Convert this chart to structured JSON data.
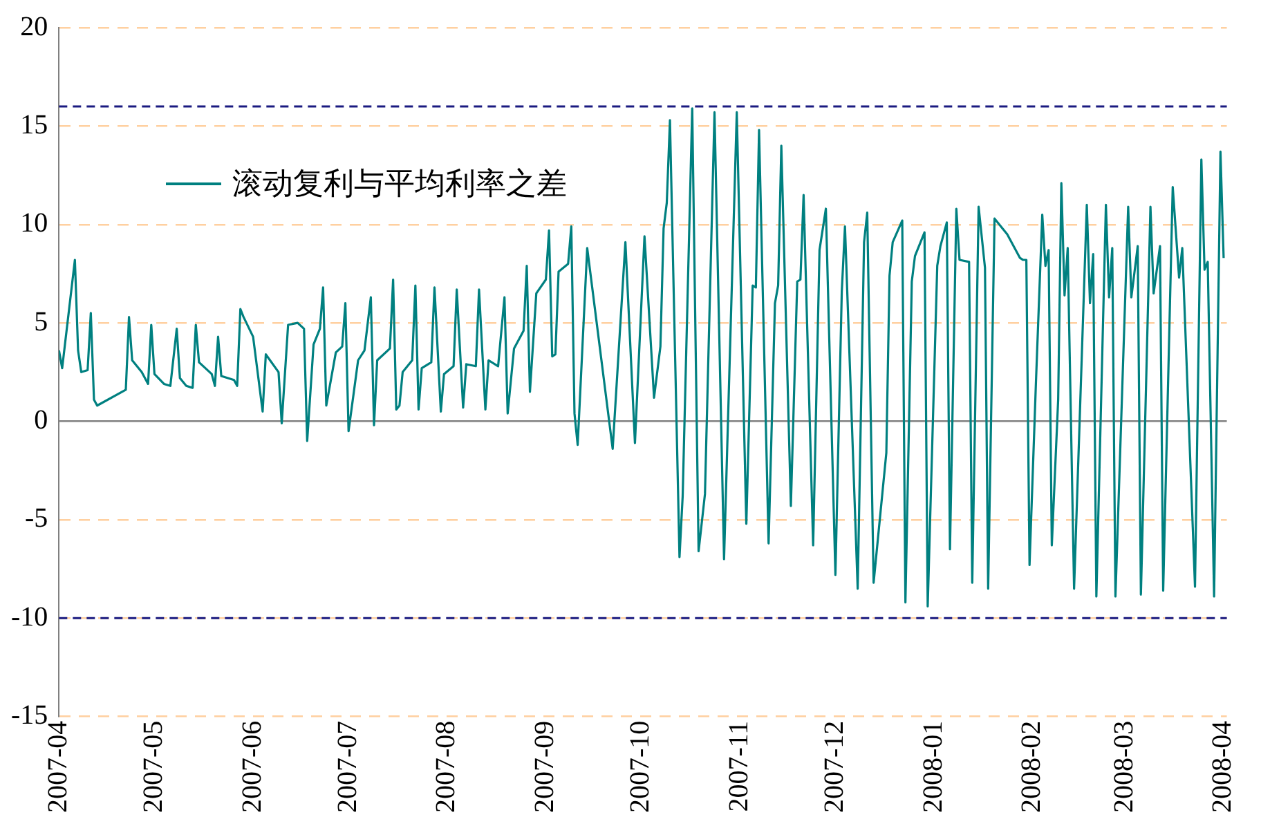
{
  "chart_data": {
    "type": "line",
    "legend": "top left",
    "grid": "y",
    "marker": "none",
    "line_style": "solid",
    "xlim": [
      "2007-04-01",
      "2008-04-02"
    ],
    "ylim": [
      -15,
      20
    ],
    "yticks": [
      -15,
      -10,
      -5,
      0,
      5,
      10,
      15,
      20
    ],
    "xticks": [
      "2007-04",
      "2007-05",
      "2007-06",
      "2007-07",
      "2007-08",
      "2007-09",
      "2007-10",
      "2007-11",
      "2007-12",
      "2008-01",
      "2008-02",
      "2008-03",
      "2008-04"
    ],
    "ref_lines": [
      {
        "axis": "y",
        "value": 16,
        "label": null,
        "color": "#1a1a80",
        "line_style": "dashed"
      },
      {
        "axis": "y",
        "value": -10,
        "label": null,
        "color": "#1a1a80",
        "line_style": "dashed"
      }
    ],
    "series": [
      {
        "name": "滚动复利与平均利率之差",
        "color": "#008080",
        "x": [
          "2007-04-01",
          "2007-04-02",
          "2007-04-06",
          "2007-04-07",
          "2007-04-08",
          "2007-04-10",
          "2007-04-11",
          "2007-04-12",
          "2007-04-13",
          "2007-04-22",
          "2007-04-23",
          "2007-04-24",
          "2007-04-27",
          "2007-04-29",
          "2007-04-30",
          "2007-05-01",
          "2007-05-04",
          "2007-05-06",
          "2007-05-08",
          "2007-05-09",
          "2007-05-11",
          "2007-05-13",
          "2007-05-14",
          "2007-05-15",
          "2007-05-19",
          "2007-05-20",
          "2007-05-21",
          "2007-05-22",
          "2007-05-26",
          "2007-05-27",
          "2007-05-28",
          "2007-05-29",
          "2007-06-01",
          "2007-06-04",
          "2007-06-05",
          "2007-06-09",
          "2007-06-10",
          "2007-06-12",
          "2007-06-15",
          "2007-06-17",
          "2007-06-18",
          "2007-06-20",
          "2007-06-22",
          "2007-06-23",
          "2007-06-24",
          "2007-06-27",
          "2007-06-29",
          "2007-06-30",
          "2007-07-01",
          "2007-07-04",
          "2007-07-06",
          "2007-07-08",
          "2007-07-09",
          "2007-07-10",
          "2007-07-14",
          "2007-07-15",
          "2007-07-16",
          "2007-07-17",
          "2007-07-18",
          "2007-07-21",
          "2007-07-22",
          "2007-07-23",
          "2007-07-24",
          "2007-07-27",
          "2007-07-28",
          "2007-07-30",
          "2007-07-31",
          "2007-08-03",
          "2007-08-04",
          "2007-08-06",
          "2007-08-07",
          "2007-08-10",
          "2007-08-11",
          "2007-08-13",
          "2007-08-14",
          "2007-08-17",
          "2007-08-19",
          "2007-08-20",
          "2007-08-22",
          "2007-08-25",
          "2007-08-26",
          "2007-08-27",
          "2007-08-29",
          "2007-09-01",
          "2007-09-02",
          "2007-09-03",
          "2007-09-04",
          "2007-09-05",
          "2007-09-08",
          "2007-09-09",
          "2007-09-10",
          "2007-09-11",
          "2007-09-14",
          "2007-09-22",
          "2007-09-26",
          "2007-09-29",
          "2007-10-02",
          "2007-10-05",
          "2007-10-07",
          "2007-10-08",
          "2007-10-09",
          "2007-10-10",
          "2007-10-13",
          "2007-10-14",
          "2007-10-17",
          "2007-10-19",
          "2007-10-21",
          "2007-10-24",
          "2007-10-27",
          "2007-10-31",
          "2007-11-03",
          "2007-11-05",
          "2007-11-06",
          "2007-11-07",
          "2007-11-10",
          "2007-11-12",
          "2007-11-13",
          "2007-11-14",
          "2007-11-17",
          "2007-11-19",
          "2007-11-20",
          "2007-11-21",
          "2007-11-24",
          "2007-11-26",
          "2007-11-28",
          "2007-12-01",
          "2007-12-03",
          "2007-12-04",
          "2007-12-08",
          "2007-12-10",
          "2007-12-11",
          "2007-12-13",
          "2007-12-17",
          "2007-12-18",
          "2007-12-19",
          "2007-12-22",
          "2007-12-23",
          "2007-12-25",
          "2007-12-26",
          "2007-12-29",
          "2007-12-30",
          "2008-01-02",
          "2008-01-03",
          "2008-01-05",
          "2008-01-06",
          "2008-01-08",
          "2008-01-09",
          "2008-01-12",
          "2008-01-13",
          "2008-01-15",
          "2008-01-17",
          "2008-01-18",
          "2008-01-20",
          "2008-01-24",
          "2008-01-28",
          "2008-01-29",
          "2008-01-30",
          "2008-01-31",
          "2008-02-02",
          "2008-02-04",
          "2008-02-05",
          "2008-02-06",
          "2008-02-07",
          "2008-02-09",
          "2008-02-10",
          "2008-02-11",
          "2008-02-12",
          "2008-02-14",
          "2008-02-18",
          "2008-02-19",
          "2008-02-20",
          "2008-02-21",
          "2008-02-24",
          "2008-02-25",
          "2008-02-26",
          "2008-02-27",
          "2008-03-02",
          "2008-03-03",
          "2008-03-05",
          "2008-03-06",
          "2008-03-09",
          "2008-03-10",
          "2008-03-12",
          "2008-03-13",
          "2008-03-16",
          "2008-03-18",
          "2008-03-19",
          "2008-03-23",
          "2008-03-25",
          "2008-03-26",
          "2008-03-27",
          "2008-03-29",
          "2008-03-31",
          "2008-04-01"
        ],
        "values": [
          3.6,
          2.7,
          8.2,
          3.6,
          2.5,
          2.6,
          5.5,
          1.1,
          0.8,
          1.6,
          5.3,
          3.1,
          2.5,
          1.9,
          4.9,
          2.4,
          1.9,
          1.8,
          4.7,
          2.2,
          1.8,
          1.7,
          4.9,
          3.0,
          2.4,
          1.8,
          4.3,
          2.3,
          2.1,
          1.8,
          5.7,
          5.3,
          4.3,
          0.5,
          3.4,
          2.5,
          -0.1,
          4.9,
          5.0,
          4.7,
          -1.0,
          3.9,
          4.7,
          6.8,
          0.8,
          3.5,
          3.8,
          6.0,
          -0.5,
          3.1,
          3.6,
          6.3,
          -0.2,
          3.1,
          3.7,
          7.2,
          0.6,
          0.8,
          2.5,
          3.1,
          6.9,
          0.6,
          2.7,
          3.0,
          6.8,
          0.5,
          2.4,
          2.8,
          6.7,
          0.7,
          2.9,
          2.8,
          6.7,
          0.6,
          3.1,
          2.8,
          6.3,
          0.4,
          3.7,
          4.6,
          7.9,
          1.5,
          6.5,
          7.2,
          9.7,
          3.3,
          3.4,
          7.6,
          8.0,
          9.9,
          0.4,
          -1.2,
          8.8,
          -1.4,
          9.1,
          -1.1,
          9.4,
          1.2,
          3.8,
          9.8,
          11.1,
          15.3,
          -6.9,
          -3.8,
          15.9,
          -6.6,
          -3.7,
          15.7,
          -7.0,
          15.7,
          -5.2,
          6.9,
          6.8,
          14.8,
          -6.2,
          6.0,
          6.9,
          14.0,
          -4.3,
          7.1,
          7.2,
          11.5,
          -6.3,
          8.7,
          10.8,
          -7.8,
          6.6,
          9.9,
          -8.5,
          9.1,
          10.6,
          -8.2,
          -1.6,
          7.4,
          9.1,
          10.2,
          -9.2,
          7.1,
          8.4,
          9.6,
          -9.4,
          7.9,
          8.9,
          10.1,
          -6.5,
          10.8,
          8.2,
          8.1,
          -8.2,
          10.9,
          7.8,
          -8.5,
          10.3,
          9.5,
          8.3,
          8.2,
          8.2,
          -7.3,
          1.9,
          10.5,
          7.9,
          8.7,
          -6.3,
          1.1,
          12.1,
          6.4,
          8.8,
          -8.5,
          11.0,
          6.0,
          8.5,
          -8.9,
          11.0,
          6.3,
          8.8,
          -8.9,
          10.9,
          6.3,
          8.9,
          -8.8,
          10.9,
          6.5,
          8.9,
          -8.6,
          11.9,
          7.3,
          8.8,
          -8.4,
          13.3,
          7.7,
          8.1,
          -8.9,
          13.7,
          8.3
        ]
      }
    ]
  }
}
